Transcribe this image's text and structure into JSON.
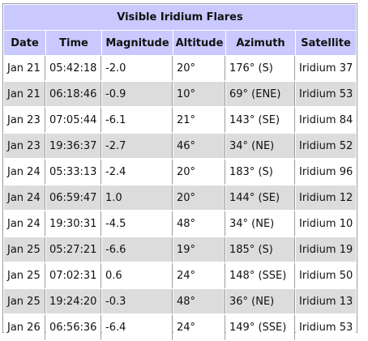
{
  "table": {
    "title": "Visible Iridium Flares",
    "headers": [
      "Date",
      "Time",
      "Magnitude",
      "Altitude",
      "Azimuth",
      "Satellite"
    ],
    "rows": [
      [
        "Jan 21",
        "05:42:18",
        "-2.0",
        "20°",
        "176° (S)",
        "Iridium 37"
      ],
      [
        "Jan 21",
        "06:18:46",
        "-0.9",
        "10°",
        "69° (ENE)",
        "Iridium 53"
      ],
      [
        "Jan 23",
        "07:05:44",
        "-6.1",
        "21°",
        "143° (SE)",
        "Iridium 84"
      ],
      [
        "Jan 23",
        "19:36:37",
        "-2.7",
        "46°",
        "34° (NE)",
        "Iridium 52"
      ],
      [
        "Jan 24",
        "05:33:13",
        "-2.4",
        "20°",
        "183° (S)",
        "Iridium 96"
      ],
      [
        "Jan 24",
        "06:59:47",
        "1.0",
        "20°",
        "144° (SE)",
        "Iridium 12"
      ],
      [
        "Jan 24",
        "19:30:31",
        "-4.5",
        "48°",
        "34° (NE)",
        "Iridium 10"
      ],
      [
        "Jan 25",
        "05:27:21",
        "-6.6",
        "19°",
        "185° (S)",
        "Iridium 19"
      ],
      [
        "Jan 25",
        "07:02:31",
        "0.6",
        "24°",
        "148° (SSE)",
        "Iridium 50"
      ],
      [
        "Jan 25",
        "19:24:20",
        "-0.3",
        "48°",
        "36° (NE)",
        "Iridium 13"
      ],
      [
        "Jan 26",
        "06:56:36",
        "-6.4",
        "24°",
        "149° (SSE)",
        "Iridium 53"
      ]
    ]
  },
  "colors": {
    "header_bg": "#c9c9ff",
    "row_alt_bg": "#dcdcdc",
    "row_bg": "#ffffff",
    "border": "#9a9aaa"
  }
}
